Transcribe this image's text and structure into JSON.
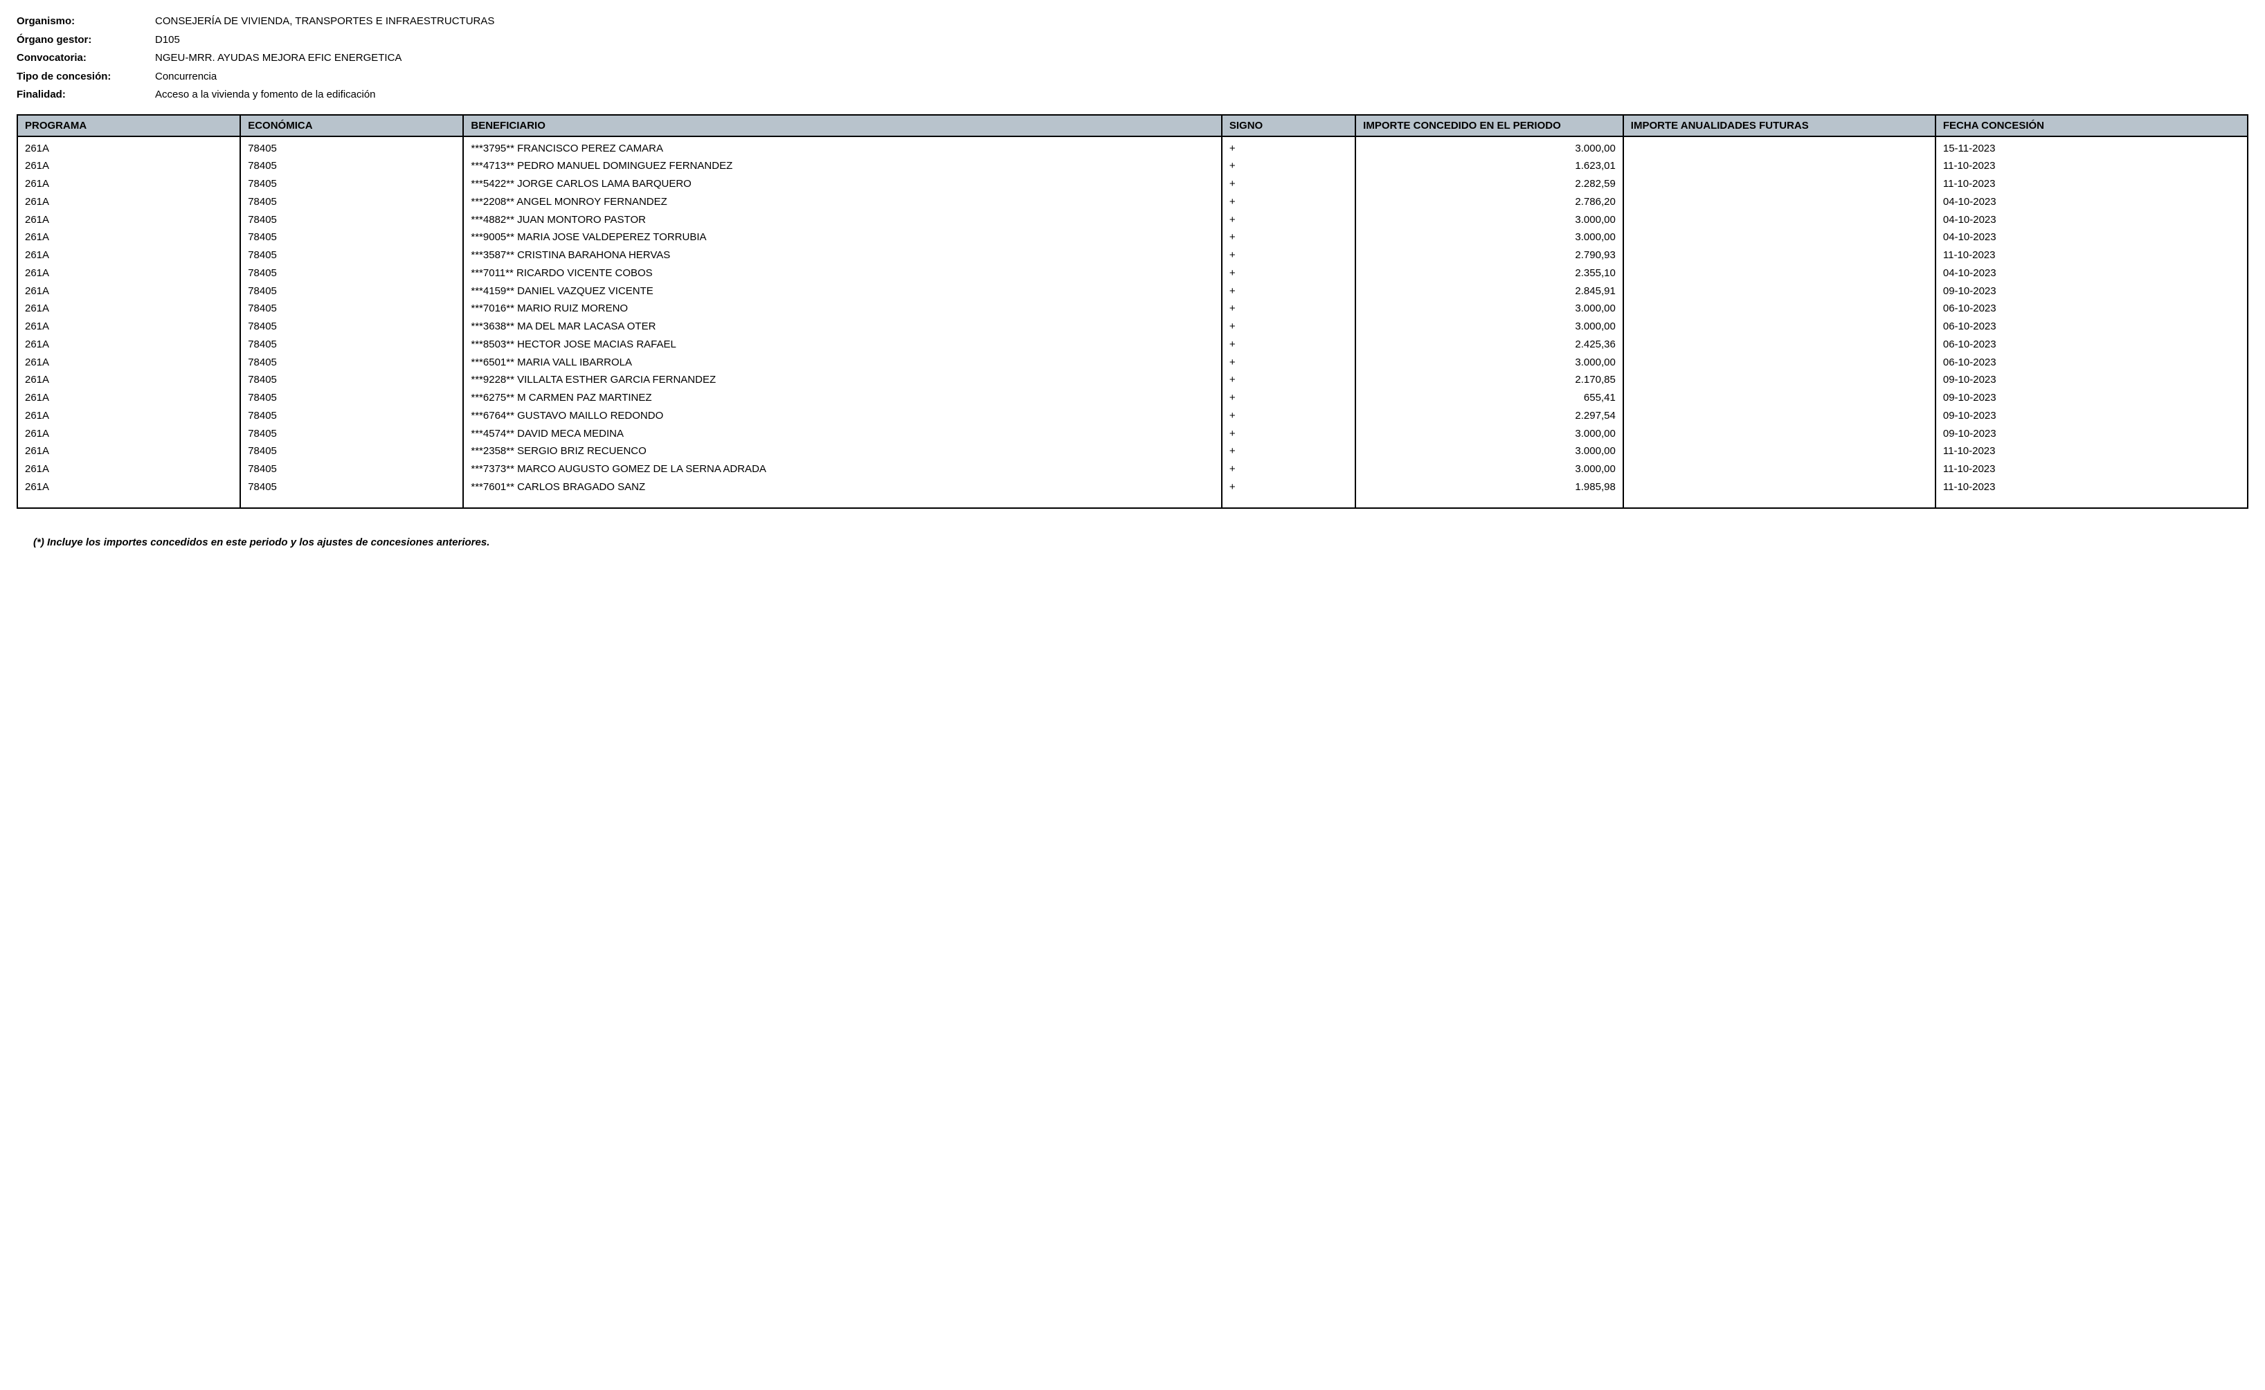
{
  "header": {
    "labels": {
      "organismo": "Organismo:",
      "organo": "Órgano gestor:",
      "convocatoria": "Convocatoria:",
      "tipo": "Tipo de concesión:",
      "finalidad": "Finalidad:"
    },
    "values": {
      "organismo": "CONSEJERÍA DE VIVIENDA, TRANSPORTES E INFRAESTRUCTURAS",
      "organo": "D105",
      "convocatoria": "NGEU-MRR. AYUDAS MEJORA EFIC ENERGETICA",
      "tipo": "Concurrencia",
      "finalidad": "Acceso a la vivienda y fomento de la edificación"
    }
  },
  "table": {
    "columns": {
      "programa": "PROGRAMA",
      "economica": "ECONÓMICA",
      "beneficiario": "BENEFICIARIO",
      "signo": "SIGNO",
      "importe_periodo": "IMPORTE CONCEDIDO EN EL PERIODO",
      "importe_futuras": "IMPORTE ANUALIDADES FUTURAS",
      "fecha": "FECHA CONCESIÓN"
    },
    "col_widths": {
      "programa": "10%",
      "economica": "10%",
      "beneficiario": "34%",
      "signo": "6%",
      "importe_periodo": "12%",
      "importe_futuras": "14%",
      "fecha": "14%"
    },
    "rows": [
      {
        "programa": "261A",
        "economica": "78405",
        "beneficiario": "***3795** FRANCISCO PEREZ CAMARA",
        "signo": "+",
        "importe_periodo": "3.000,00",
        "importe_futuras": "",
        "fecha": "15-11-2023"
      },
      {
        "programa": "261A",
        "economica": "78405",
        "beneficiario": "***4713** PEDRO MANUEL DOMINGUEZ FERNANDEZ",
        "signo": "+",
        "importe_periodo": "1.623,01",
        "importe_futuras": "",
        "fecha": "11-10-2023"
      },
      {
        "programa": "261A",
        "economica": "78405",
        "beneficiario": "***5422** JORGE CARLOS LAMA BARQUERO",
        "signo": "+",
        "importe_periodo": "2.282,59",
        "importe_futuras": "",
        "fecha": "11-10-2023"
      },
      {
        "programa": "261A",
        "economica": "78405",
        "beneficiario": "***2208** ANGEL MONROY FERNANDEZ",
        "signo": "+",
        "importe_periodo": "2.786,20",
        "importe_futuras": "",
        "fecha": "04-10-2023"
      },
      {
        "programa": "261A",
        "economica": "78405",
        "beneficiario": "***4882** JUAN MONTORO PASTOR",
        "signo": "+",
        "importe_periodo": "3.000,00",
        "importe_futuras": "",
        "fecha": "04-10-2023"
      },
      {
        "programa": "261A",
        "economica": "78405",
        "beneficiario": "***9005** MARIA JOSE VALDEPEREZ TORRUBIA",
        "signo": "+",
        "importe_periodo": "3.000,00",
        "importe_futuras": "",
        "fecha": "04-10-2023"
      },
      {
        "programa": "261A",
        "economica": "78405",
        "beneficiario": "***3587** CRISTINA BARAHONA HERVAS",
        "signo": "+",
        "importe_periodo": "2.790,93",
        "importe_futuras": "",
        "fecha": "11-10-2023"
      },
      {
        "programa": "261A",
        "economica": "78405",
        "beneficiario": "***7011** RICARDO VICENTE COBOS",
        "signo": "+",
        "importe_periodo": "2.355,10",
        "importe_futuras": "",
        "fecha": "04-10-2023"
      },
      {
        "programa": "261A",
        "economica": "78405",
        "beneficiario": "***4159** DANIEL VAZQUEZ VICENTE",
        "signo": "+",
        "importe_periodo": "2.845,91",
        "importe_futuras": "",
        "fecha": "09-10-2023"
      },
      {
        "programa": "261A",
        "economica": "78405",
        "beneficiario": "***7016** MARIO RUIZ MORENO",
        "signo": "+",
        "importe_periodo": "3.000,00",
        "importe_futuras": "",
        "fecha": "06-10-2023"
      },
      {
        "programa": "261A",
        "economica": "78405",
        "beneficiario": "***3638** MA DEL MAR LACASA OTER",
        "signo": "+",
        "importe_periodo": "3.000,00",
        "importe_futuras": "",
        "fecha": "06-10-2023"
      },
      {
        "programa": "261A",
        "economica": "78405",
        "beneficiario": "***8503** HECTOR JOSE MACIAS RAFAEL",
        "signo": "+",
        "importe_periodo": "2.425,36",
        "importe_futuras": "",
        "fecha": "06-10-2023"
      },
      {
        "programa": "261A",
        "economica": "78405",
        "beneficiario": "***6501** MARIA VALL IBARROLA",
        "signo": "+",
        "importe_periodo": "3.000,00",
        "importe_futuras": "",
        "fecha": "06-10-2023"
      },
      {
        "programa": "261A",
        "economica": "78405",
        "beneficiario": "***9228** VILLALTA ESTHER GARCIA FERNANDEZ",
        "signo": "+",
        "importe_periodo": "2.170,85",
        "importe_futuras": "",
        "fecha": "09-10-2023"
      },
      {
        "programa": "261A",
        "economica": "78405",
        "beneficiario": "***6275** M CARMEN PAZ MARTINEZ",
        "signo": "+",
        "importe_periodo": "655,41",
        "importe_futuras": "",
        "fecha": "09-10-2023"
      },
      {
        "programa": "261A",
        "economica": "78405",
        "beneficiario": "***6764** GUSTAVO MAILLO REDONDO",
        "signo": "+",
        "importe_periodo": "2.297,54",
        "importe_futuras": "",
        "fecha": "09-10-2023"
      },
      {
        "programa": "261A",
        "economica": "78405",
        "beneficiario": "***4574** DAVID MECA MEDINA",
        "signo": "+",
        "importe_periodo": "3.000,00",
        "importe_futuras": "",
        "fecha": "09-10-2023"
      },
      {
        "programa": "261A",
        "economica": "78405",
        "beneficiario": "***2358** SERGIO BRIZ RECUENCO",
        "signo": "+",
        "importe_periodo": "3.000,00",
        "importe_futuras": "",
        "fecha": "11-10-2023"
      },
      {
        "programa": "261A",
        "economica": "78405",
        "beneficiario": "***7373** MARCO AUGUSTO GOMEZ DE LA SERNA ADRADA",
        "signo": "+",
        "importe_periodo": "3.000,00",
        "importe_futuras": "",
        "fecha": "11-10-2023"
      },
      {
        "programa": "261A",
        "economica": "78405",
        "beneficiario": "***7601** CARLOS BRAGADO SANZ",
        "signo": "+",
        "importe_periodo": "1.985,98",
        "importe_futuras": "",
        "fecha": "11-10-2023"
      }
    ]
  },
  "footnote": "(*) Incluye los importes concedidos en este periodo y los ajustes de concesiones anteriores.",
  "colors": {
    "header_bg": "#b8c3cc",
    "border": "#000000",
    "text": "#000000",
    "background": "#ffffff"
  }
}
